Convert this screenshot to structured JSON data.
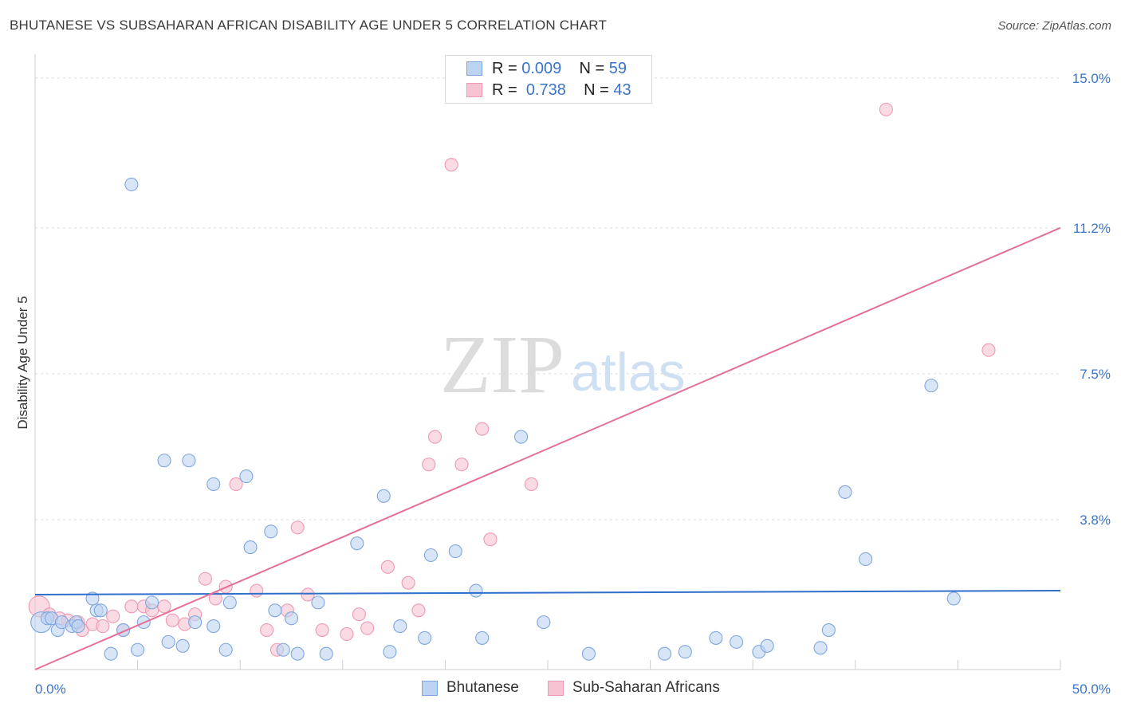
{
  "title": "BHUTANESE VS SUBSAHARAN AFRICAN DISABILITY AGE UNDER 5 CORRELATION CHART",
  "source": "Source: ZipAtlas.com",
  "watermark": {
    "zip": "ZIP",
    "atlas": "atlas"
  },
  "legend_top": [
    {
      "r_label": "R =",
      "r_value": "0.009",
      "n_label": "N =",
      "n_value": "59"
    },
    {
      "r_label": "R =",
      "r_value": "0.738",
      "n_label": "N =",
      "n_value": "43"
    }
  ],
  "legend_bottom": [
    "Bhutanese",
    "Sub-Saharan Africans"
  ],
  "colors": {
    "blue_fill": "#bcd3f2",
    "blue_stroke": "#7ea6de",
    "blue_line": "#2f6fcb",
    "pink_fill": "#f7c3d2",
    "pink_stroke": "#ee9ab4",
    "pink_line": "#e4709a",
    "tick_label": "#3a74c9",
    "grid": "#dddddd"
  },
  "chart_data": {
    "type": "scatter",
    "title": "BHUTANESE VS SUBSAHARAN AFRICAN DISABILITY AGE UNDER 5 CORRELATION CHART",
    "xlabel": "",
    "ylabel": "Disability Age Under 5",
    "xlim": [
      0,
      50
    ],
    "ylim": [
      0,
      15.4
    ],
    "x_tick_labels": [
      "0.0%",
      "50.0%"
    ],
    "y_ticks": [
      3.8,
      7.5,
      11.2,
      15.0
    ],
    "y_tick_labels": [
      "3.8%",
      "7.5%",
      "11.2%",
      "15.0%"
    ],
    "grid": true,
    "legend_position": "top-center",
    "series": [
      {
        "name": "Bhutanese",
        "R": 0.009,
        "N": 59,
        "trend": {
          "x": [
            0,
            50
          ],
          "y": [
            1.9,
            2.0
          ]
        },
        "points": [
          [
            0.3,
            1.2
          ],
          [
            0.6,
            1.3
          ],
          [
            0.8,
            1.3
          ],
          [
            1.1,
            1.0
          ],
          [
            1.3,
            1.2
          ],
          [
            1.8,
            1.1
          ],
          [
            2.0,
            1.2
          ],
          [
            2.1,
            1.1
          ],
          [
            2.8,
            1.8
          ],
          [
            3.0,
            1.5
          ],
          [
            3.2,
            1.5
          ],
          [
            3.7,
            0.4
          ],
          [
            4.3,
            1.0
          ],
          [
            4.7,
            12.3
          ],
          [
            5.0,
            0.5
          ],
          [
            5.3,
            1.2
          ],
          [
            5.7,
            1.7
          ],
          [
            6.3,
            5.3
          ],
          [
            6.5,
            0.7
          ],
          [
            7.2,
            0.6
          ],
          [
            7.5,
            5.3
          ],
          [
            7.8,
            1.2
          ],
          [
            8.7,
            1.1
          ],
          [
            8.7,
            4.7
          ],
          [
            9.3,
            0.5
          ],
          [
            9.5,
            1.7
          ],
          [
            10.3,
            4.9
          ],
          [
            10.5,
            3.1
          ],
          [
            11.5,
            3.5
          ],
          [
            11.7,
            1.5
          ],
          [
            12.1,
            0.5
          ],
          [
            12.5,
            1.3
          ],
          [
            12.8,
            0.4
          ],
          [
            13.8,
            1.7
          ],
          [
            14.2,
            0.4
          ],
          [
            15.7,
            3.2
          ],
          [
            17.0,
            4.4
          ],
          [
            17.3,
            0.45
          ],
          [
            17.8,
            1.1
          ],
          [
            19.0,
            0.8
          ],
          [
            19.3,
            2.9
          ],
          [
            20.5,
            3.0
          ],
          [
            21.5,
            2.0
          ],
          [
            21.8,
            0.8
          ],
          [
            23.7,
            5.9
          ],
          [
            24.8,
            1.2
          ],
          [
            27.0,
            0.4
          ],
          [
            30.7,
            0.4
          ],
          [
            31.7,
            0.45
          ],
          [
            33.2,
            0.8
          ],
          [
            34.2,
            0.7
          ],
          [
            35.3,
            0.45
          ],
          [
            35.7,
            0.6
          ],
          [
            38.3,
            0.55
          ],
          [
            38.7,
            1.0
          ],
          [
            39.5,
            4.5
          ],
          [
            40.5,
            2.8
          ],
          [
            43.7,
            7.2
          ],
          [
            44.8,
            1.8
          ]
        ]
      },
      {
        "name": "Sub-Saharan Africans",
        "R": 0.738,
        "N": 43,
        "trend": {
          "x": [
            0,
            50
          ],
          "y": [
            0.0,
            11.2
          ]
        },
        "points": [
          [
            0.2,
            1.6
          ],
          [
            0.7,
            1.4
          ],
          [
            1.2,
            1.3
          ],
          [
            1.6,
            1.25
          ],
          [
            2.1,
            1.2
          ],
          [
            2.3,
            1.0
          ],
          [
            2.8,
            1.15
          ],
          [
            3.3,
            1.1
          ],
          [
            3.8,
            1.35
          ],
          [
            4.3,
            1.0
          ],
          [
            4.7,
            1.6
          ],
          [
            5.3,
            1.6
          ],
          [
            5.7,
            1.5
          ],
          [
            6.3,
            1.6
          ],
          [
            6.7,
            1.25
          ],
          [
            7.3,
            1.15
          ],
          [
            7.8,
            1.4
          ],
          [
            8.3,
            2.3
          ],
          [
            8.8,
            1.8
          ],
          [
            9.3,
            2.1
          ],
          [
            9.8,
            4.7
          ],
          [
            10.8,
            2.0
          ],
          [
            11.3,
            1.0
          ],
          [
            11.8,
            0.5
          ],
          [
            12.3,
            1.5
          ],
          [
            12.8,
            3.6
          ],
          [
            13.3,
            1.9
          ],
          [
            14.0,
            1.0
          ],
          [
            15.2,
            0.9
          ],
          [
            15.8,
            1.4
          ],
          [
            16.2,
            1.05
          ],
          [
            17.2,
            2.6
          ],
          [
            18.2,
            2.2
          ],
          [
            18.7,
            1.5
          ],
          [
            19.2,
            5.2
          ],
          [
            19.5,
            5.9
          ],
          [
            20.3,
            12.8
          ],
          [
            20.8,
            5.2
          ],
          [
            21.8,
            6.1
          ],
          [
            22.2,
            3.3
          ],
          [
            24.2,
            4.7
          ],
          [
            41.5,
            14.2
          ],
          [
            46.5,
            8.1
          ]
        ]
      }
    ]
  }
}
